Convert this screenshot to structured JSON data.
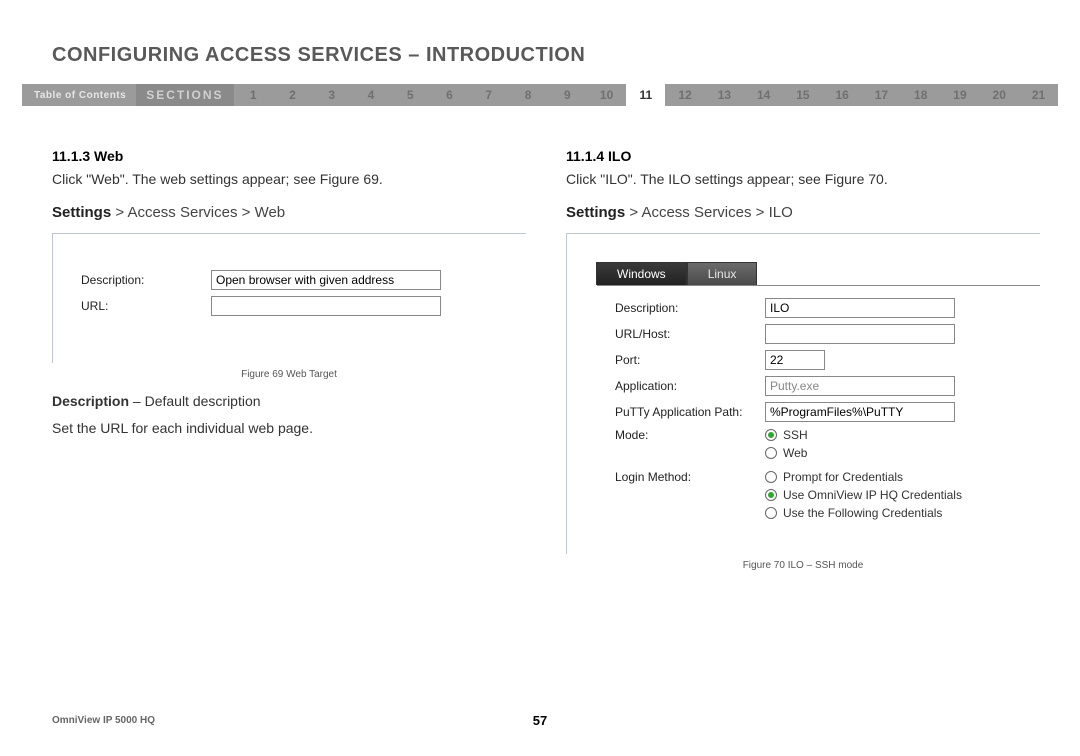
{
  "title": "CONFIGURING ACCESS SERVICES – INTRODUCTION",
  "nav": {
    "toc": "Table of Contents",
    "sections_label": "SECTIONS",
    "numbers": [
      "1",
      "2",
      "3",
      "4",
      "5",
      "6",
      "7",
      "8",
      "9",
      "10",
      "11",
      "12",
      "13",
      "14",
      "15",
      "16",
      "17",
      "18",
      "19",
      "20",
      "21"
    ],
    "active": "11"
  },
  "left": {
    "heading": "11.1.3 Web",
    "p1": "Click \"Web\". The web settings appear; see Figure 69.",
    "breadcrumb_strong": "Settings",
    "breadcrumb_rest": " > Access Services > Web",
    "form": {
      "desc_label": "Description:",
      "desc_value": "Open browser with given address",
      "url_label": "URL:",
      "url_value": ""
    },
    "caption": "Figure 69 Web Target",
    "desc_line_strong": "Description",
    "desc_line_rest": " – Default description",
    "p2": "Set the URL for each individual web page."
  },
  "right": {
    "heading": "11.1.4 ILO",
    "p1": "Click \"ILO\". The ILO settings appear; see Figure 70.",
    "breadcrumb_strong": "Settings",
    "breadcrumb_rest": " > Access Services > ILO",
    "tabs": {
      "windows": "Windows",
      "linux": "Linux"
    },
    "form": {
      "desc_label": "Description:",
      "desc_value": "ILO",
      "url_label": "URL/Host:",
      "url_value": "",
      "port_label": "Port:",
      "port_value": "22",
      "app_label": "Application:",
      "app_value": "Putty.exe",
      "path_label": "PuTTy Application Path:",
      "path_value": "%ProgramFiles%\\PuTTY",
      "mode_label": "Mode:",
      "mode_ssh": "SSH",
      "mode_web": "Web",
      "login_label": "Login Method:",
      "login_prompt": "Prompt for Credentials",
      "login_omni": "Use OmniView IP HQ Credentials",
      "login_follow": "Use the Following Credentials"
    },
    "caption": "Figure 70 ILO – SSH mode"
  },
  "footer": {
    "product": "OmniView IP 5000 HQ",
    "page": "57"
  }
}
